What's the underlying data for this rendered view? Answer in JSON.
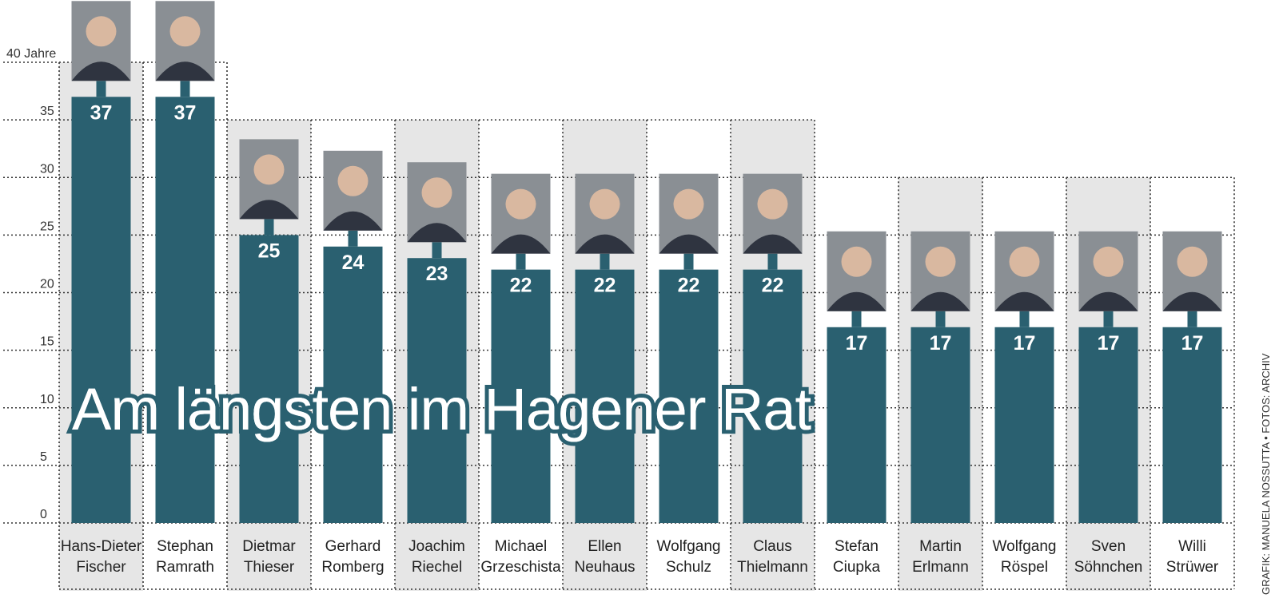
{
  "chart_data": {
    "type": "bar",
    "title": "Am längsten im Hagener Rat",
    "ylabel": "",
    "y_unit_label": "40 Jahre",
    "ylim": [
      0,
      40
    ],
    "yticks": [
      "0",
      "5",
      "10",
      "15",
      "20",
      "25",
      "30",
      "35",
      "40 Jahre"
    ],
    "bar_color": "#2a6070",
    "categories": [
      [
        "Hans-Dieter",
        "Fischer"
      ],
      [
        "Stephan",
        "Ramrath"
      ],
      [
        "Dietmar",
        "Thieser"
      ],
      [
        "Gerhard",
        "Romberg"
      ],
      [
        "Joachim",
        "Riechel"
      ],
      [
        "Michael",
        "Grzeschista"
      ],
      [
        "Ellen",
        "Neuhaus"
      ],
      [
        "Wolfgang",
        "Schulz"
      ],
      [
        "Claus",
        "Thielmann"
      ],
      [
        "Stefan",
        "Ciupka"
      ],
      [
        "Martin",
        "Erlmann"
      ],
      [
        "Wolfgang",
        "Röspel"
      ],
      [
        "Sven",
        "Söhnchen"
      ],
      [
        "Willi",
        "Strüwer"
      ]
    ],
    "values": [
      37,
      37,
      25,
      24,
      23,
      22,
      22,
      22,
      22,
      17,
      17,
      17,
      17,
      17
    ]
  },
  "credit": "GRAFIK: MANUELA NOSSUTTA  •  FOTOS: ARCHIV"
}
